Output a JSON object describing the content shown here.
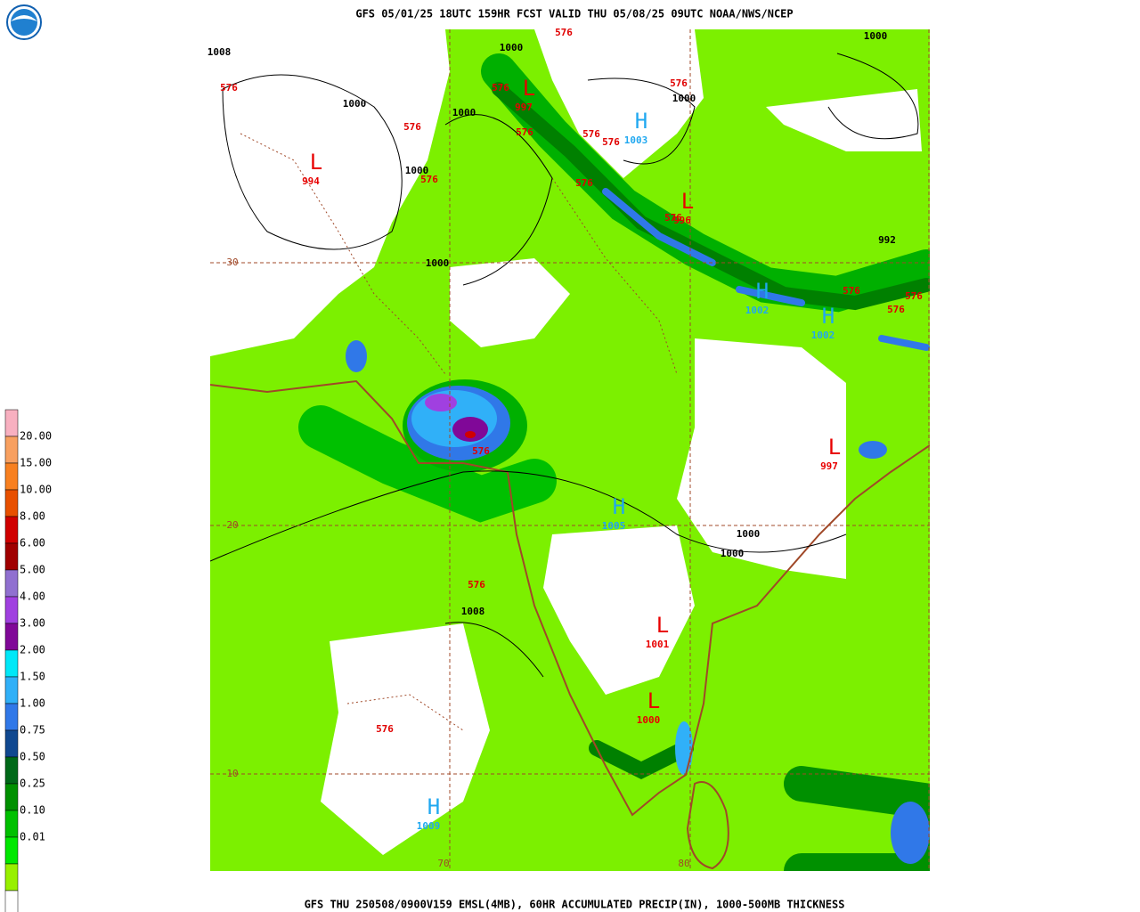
{
  "header": {
    "title": "GFS 05/01/25 18UTC 159HR FCST VALID THU 05/08/25 09UTC NOAA/NWS/NCEP"
  },
  "footer": {
    "caption": "GFS THU 250508/0900V159 EMSL(4MB), 60HR ACCUMULATED PRECIP(IN), 1000-500MB THICKNESS"
  },
  "legend": {
    "labels": [
      "20.00",
      "15.00",
      "10.00",
      "8.00",
      "6.00",
      "5.00",
      "4.00",
      "3.00",
      "2.00",
      "1.50",
      "1.00",
      "0.75",
      "0.50",
      "0.25",
      "0.10",
      "0.01"
    ],
    "colors": [
      "#f8b0c0",
      "#f8a060",
      "#f88020",
      "#e85000",
      "#d00000",
      "#a00000",
      "#9070d0",
      "#a040e0",
      "#800898",
      "#00e8f8",
      "#30b0f8",
      "#3078e8",
      "#104890",
      "#006818",
      "#009000",
      "#00c000",
      "#00e800",
      "#98f000",
      "#ffffff"
    ]
  },
  "map": {
    "pressure_centers": [
      {
        "symbol": "L",
        "value": "994"
      },
      {
        "symbol": "L",
        "value": "997"
      },
      {
        "symbol": "H",
        "value": "1003"
      },
      {
        "symbol": "L",
        "value": "996"
      },
      {
        "symbol": "H",
        "value": "1002"
      },
      {
        "symbol": "H",
        "value": "1002"
      },
      {
        "symbol": "L",
        "value": "997"
      },
      {
        "symbol": "H",
        "value": "1005"
      },
      {
        "symbol": "L",
        "value": "1001"
      },
      {
        "symbol": "L",
        "value": "1000"
      },
      {
        "symbol": "H",
        "value": "1009"
      }
    ],
    "isobar_labels": [
      "1008",
      "1000",
      "1000",
      "1000",
      "1000",
      "1000",
      "1000",
      "1000",
      "992",
      "1000",
      "1000",
      "1008"
    ],
    "thickness_labels": [
      "576",
      "576",
      "576",
      "576",
      "576",
      "576",
      "576",
      "576",
      "576",
      "576",
      "576",
      "576",
      "576",
      "576",
      "576",
      "576",
      "576"
    ],
    "grid_labels": [
      "30",
      "20",
      "10",
      "70",
      "80"
    ]
  }
}
